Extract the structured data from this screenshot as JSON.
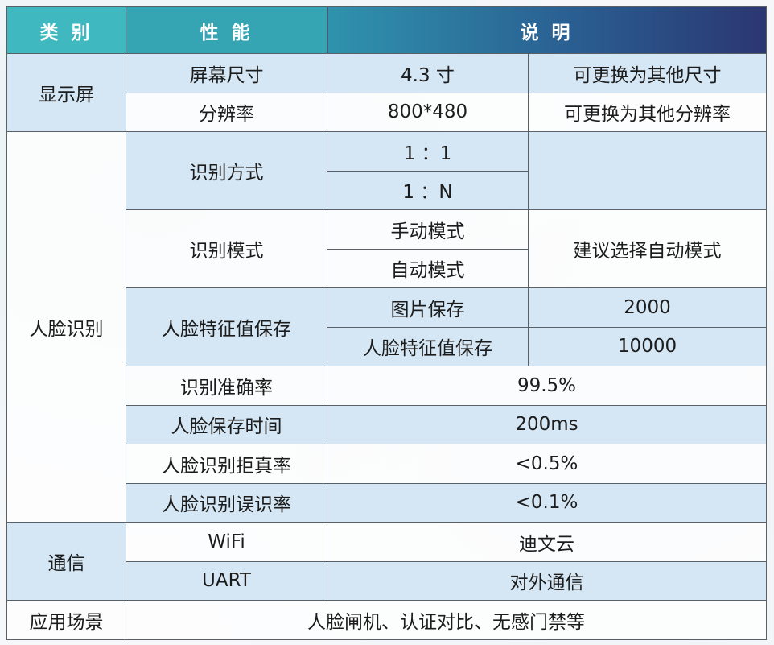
{
  "header": {
    "category": "类 别",
    "performance": "性 能",
    "description": "说 明"
  },
  "display": {
    "category": "显示屏",
    "rows": [
      {
        "performance": "屏幕尺寸",
        "value": "4.3 寸",
        "note": "可更换为其他尺寸"
      },
      {
        "performance": "分辨率",
        "value": "800*480",
        "note": "可更换为其他分辨率"
      }
    ]
  },
  "face": {
    "category": "人脸识别",
    "method": {
      "performance": "识别方式",
      "values": [
        "1 ：1",
        "1 ：N"
      ],
      "note": ""
    },
    "mode": {
      "performance": "识别模式",
      "values": [
        "手动模式",
        "自动模式"
      ],
      "note": "建议选择自动模式"
    },
    "storage": {
      "performance": "人脸特征值保存",
      "rows": [
        {
          "label": "图片保存",
          "value": "2000"
        },
        {
          "label": "人脸特征值保存",
          "value": "10000"
        }
      ]
    },
    "metrics": [
      {
        "performance": "识别准确率",
        "value": "99.5%"
      },
      {
        "performance": "人脸保存时间",
        "value": "200ms"
      },
      {
        "performance": "人脸识别拒真率",
        "value": "<0.5%"
      },
      {
        "performance": "人脸识别误识率",
        "value": "<0.1%"
      }
    ]
  },
  "comm": {
    "category": "通信",
    "rows": [
      {
        "performance": "WiFi",
        "value": "迪文云"
      },
      {
        "performance": "UART",
        "value": "对外通信"
      }
    ]
  },
  "scene": {
    "category": "应用场景",
    "value": "人脸闸机、认证对比、无感门禁等"
  },
  "colors": {
    "header_start": "#3fb8c0",
    "header_end": "#2b3672",
    "row_blue": "#d5e7f4",
    "border": "#5a6068"
  }
}
